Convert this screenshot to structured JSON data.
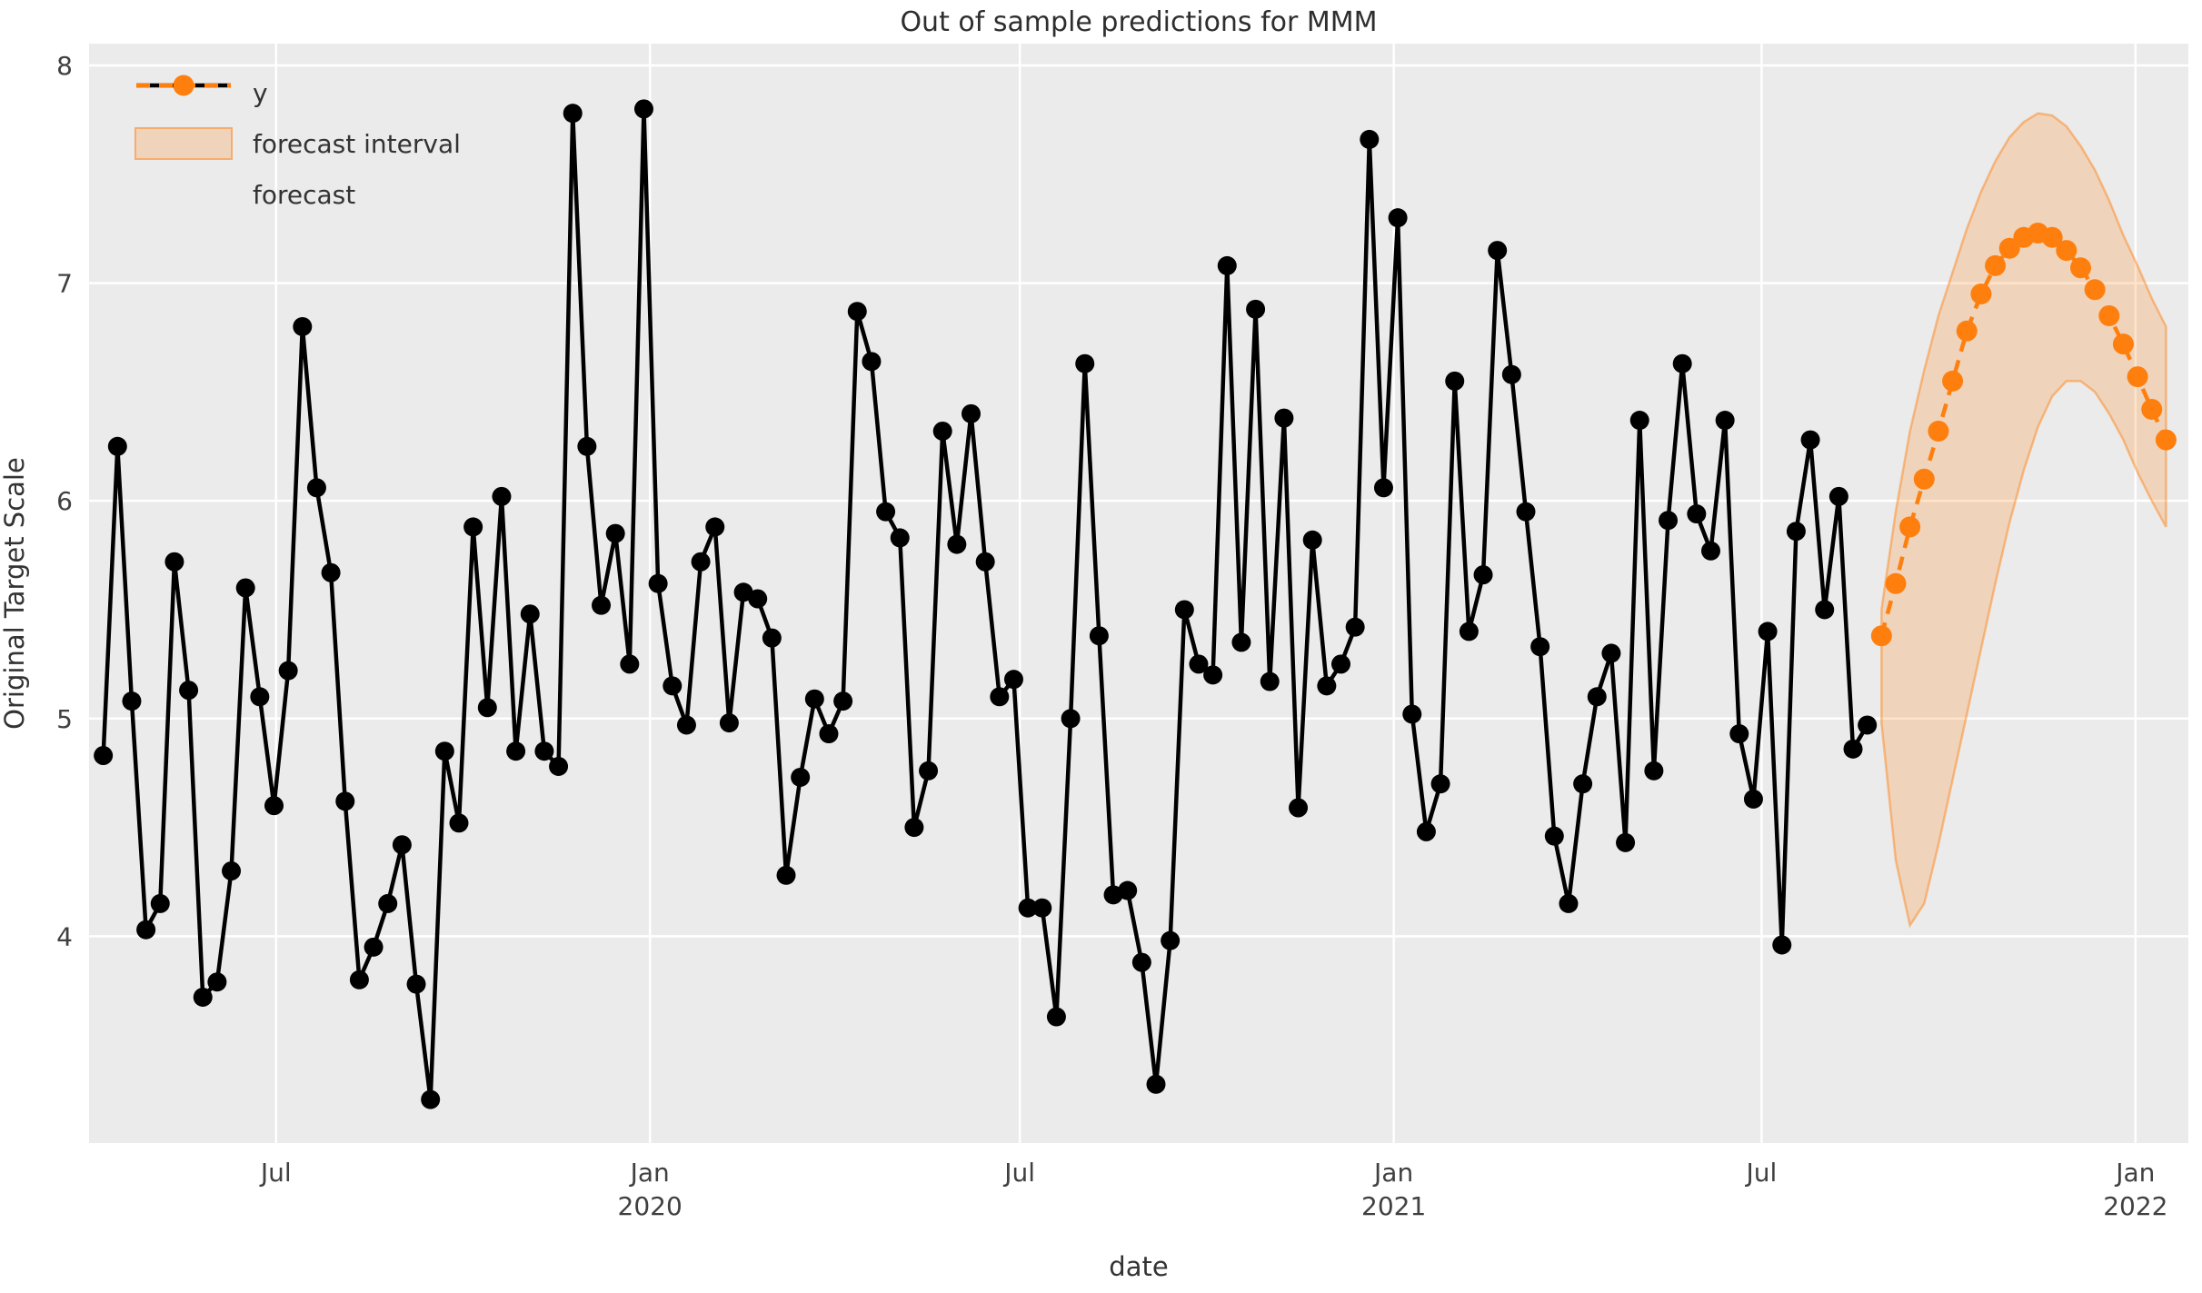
{
  "title": "Out of sample predictions for MMM",
  "axes": {
    "xlabel": "date",
    "ylabel": "Original Target Scale"
  },
  "legend": {
    "items": [
      {
        "label": "y"
      },
      {
        "label": "forecast interval"
      },
      {
        "label": "forecast"
      }
    ]
  },
  "colors": {
    "y_series": "#000000",
    "forecast": "#ff7f0e",
    "band_fill": "rgba(255,127,14,0.22)",
    "band_edge": "rgba(255,127,14,0.45)",
    "plot_bg": "#ebebeb",
    "grid": "#ffffff",
    "tick_text": "#404040",
    "title_text": "#2e2e2e"
  },
  "chart_data": {
    "type": "line",
    "title": "Out of sample predictions for MMM",
    "xlabel": "date",
    "ylabel": "Original Target Scale",
    "grid": true,
    "legend_position": "upper left",
    "ylim": [
      3.05,
      8.1
    ],
    "y_ticks": [
      8,
      7,
      6,
      5,
      4
    ],
    "x_domain": [
      "2019-03-31",
      "2022-01-27"
    ],
    "x_ticks": [
      {
        "date": "2019-07-01",
        "label": "Jul"
      },
      {
        "date": "2020-01-01",
        "label": "Jan",
        "sublabel": "2020"
      },
      {
        "date": "2020-07-01",
        "label": "Jul"
      },
      {
        "date": "2021-01-01",
        "label": "Jan",
        "sublabel": "2021"
      },
      {
        "date": "2021-07-01",
        "label": "Jul"
      },
      {
        "date": "2022-01-01",
        "label": "Jan",
        "sublabel": "2022"
      }
    ],
    "series": [
      {
        "name": "y",
        "style": "solid-marker",
        "color": "#000000",
        "start_date": "2019-04-07",
        "freq_days": 7,
        "values": [
          4.83,
          6.25,
          5.08,
          4.03,
          4.15,
          5.72,
          5.13,
          3.72,
          3.79,
          4.3,
          5.6,
          5.1,
          4.6,
          5.22,
          6.8,
          6.06,
          5.67,
          4.62,
          3.8,
          3.95,
          4.15,
          4.42,
          3.78,
          3.25,
          4.85,
          4.52,
          5.88,
          5.05,
          6.02,
          4.85,
          5.48,
          4.85,
          4.78,
          7.78,
          6.25,
          5.52,
          5.85,
          5.25,
          7.8,
          5.62,
          5.15,
          4.97,
          5.72,
          5.88,
          4.98,
          5.58,
          5.55,
          5.37,
          4.28,
          4.73,
          5.09,
          4.93,
          5.08,
          6.87,
          6.64,
          5.95,
          5.83,
          4.5,
          4.76,
          6.32,
          5.8,
          6.4,
          5.72,
          5.1,
          5.18,
          4.13,
          4.13,
          3.63,
          5.0,
          6.63,
          5.38,
          4.19,
          4.21,
          3.88,
          3.32,
          3.98,
          5.5,
          5.25,
          5.2,
          7.08,
          5.35,
          6.88,
          5.17,
          6.38,
          4.59,
          5.82,
          5.15,
          5.25,
          5.42,
          7.66,
          6.06,
          7.3,
          5.02,
          4.48,
          4.7,
          6.55,
          5.4,
          5.66,
          7.15,
          6.58,
          5.95,
          5.33,
          4.46,
          4.15,
          4.7,
          5.1,
          5.3,
          4.43,
          6.37,
          4.76,
          5.91,
          6.63,
          5.94,
          5.77,
          6.37,
          4.93,
          4.63,
          5.4,
          3.96,
          5.86,
          6.28,
          5.5,
          6.02,
          4.86,
          4.97
        ]
      },
      {
        "name": "forecast",
        "style": "dashed-marker",
        "color": "#ff7f0e",
        "band_name": "forecast interval",
        "start_date": "2021-08-29",
        "freq_days": 7,
        "values": [
          5.38,
          5.62,
          5.88,
          6.1,
          6.32,
          6.55,
          6.78,
          6.95,
          7.08,
          7.16,
          7.21,
          7.23,
          7.21,
          7.15,
          7.07,
          6.97,
          6.85,
          6.72,
          6.57,
          6.42,
          6.28
        ],
        "lower": [
          4.98,
          4.35,
          4.05,
          4.15,
          4.42,
          4.72,
          5.02,
          5.32,
          5.62,
          5.9,
          6.14,
          6.34,
          6.48,
          6.55,
          6.55,
          6.5,
          6.4,
          6.28,
          6.13,
          6.0,
          5.88
        ],
        "upper": [
          5.5,
          5.95,
          6.32,
          6.6,
          6.85,
          7.05,
          7.25,
          7.42,
          7.56,
          7.67,
          7.74,
          7.78,
          7.77,
          7.72,
          7.63,
          7.52,
          7.38,
          7.22,
          7.08,
          6.93,
          6.8
        ]
      }
    ]
  }
}
